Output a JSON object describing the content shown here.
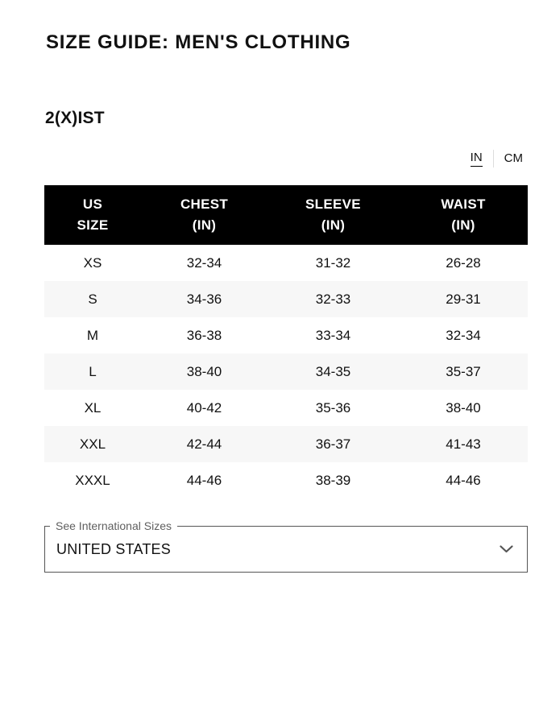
{
  "page": {
    "title": "SIZE GUIDE: MEN'S CLOTHING",
    "brand": "2(X)IST"
  },
  "unit_toggle": {
    "in_label": "IN",
    "cm_label": "CM",
    "selected": "IN"
  },
  "size_table": {
    "columns": [
      {
        "key": "us-size",
        "line1": "US",
        "line2": "SIZE"
      },
      {
        "key": "chest-in",
        "line1": "CHEST",
        "line2": "(IN)"
      },
      {
        "key": "sleeve-in",
        "line1": "SLEEVE",
        "line2": "(IN)"
      },
      {
        "key": "waist-in",
        "line1": "WAIST",
        "line2": "(IN)"
      }
    ],
    "rows": [
      [
        "XS",
        "32-34",
        "31-32",
        "26-28"
      ],
      [
        "S",
        "34-36",
        "32-33",
        "29-31"
      ],
      [
        "M",
        "36-38",
        "33-34",
        "32-34"
      ],
      [
        "L",
        "38-40",
        "34-35",
        "35-37"
      ],
      [
        "XL",
        "40-42",
        "35-36",
        "38-40"
      ],
      [
        "XXL",
        "42-44",
        "36-37",
        "41-43"
      ],
      [
        "XXXL",
        "44-46",
        "38-39",
        "44-46"
      ]
    ]
  },
  "country_selector": {
    "label": "See International Sizes",
    "value": "UNITED STATES"
  },
  "colors": {
    "header_bg": "#000000",
    "header_text": "#ffffff",
    "row_alt_bg": "#f7f7f7",
    "text": "#111111",
    "label_gray": "#5f5f5f",
    "border_gray": "#555555",
    "divider_gray": "#dddddd",
    "page_bg": "#ffffff"
  }
}
